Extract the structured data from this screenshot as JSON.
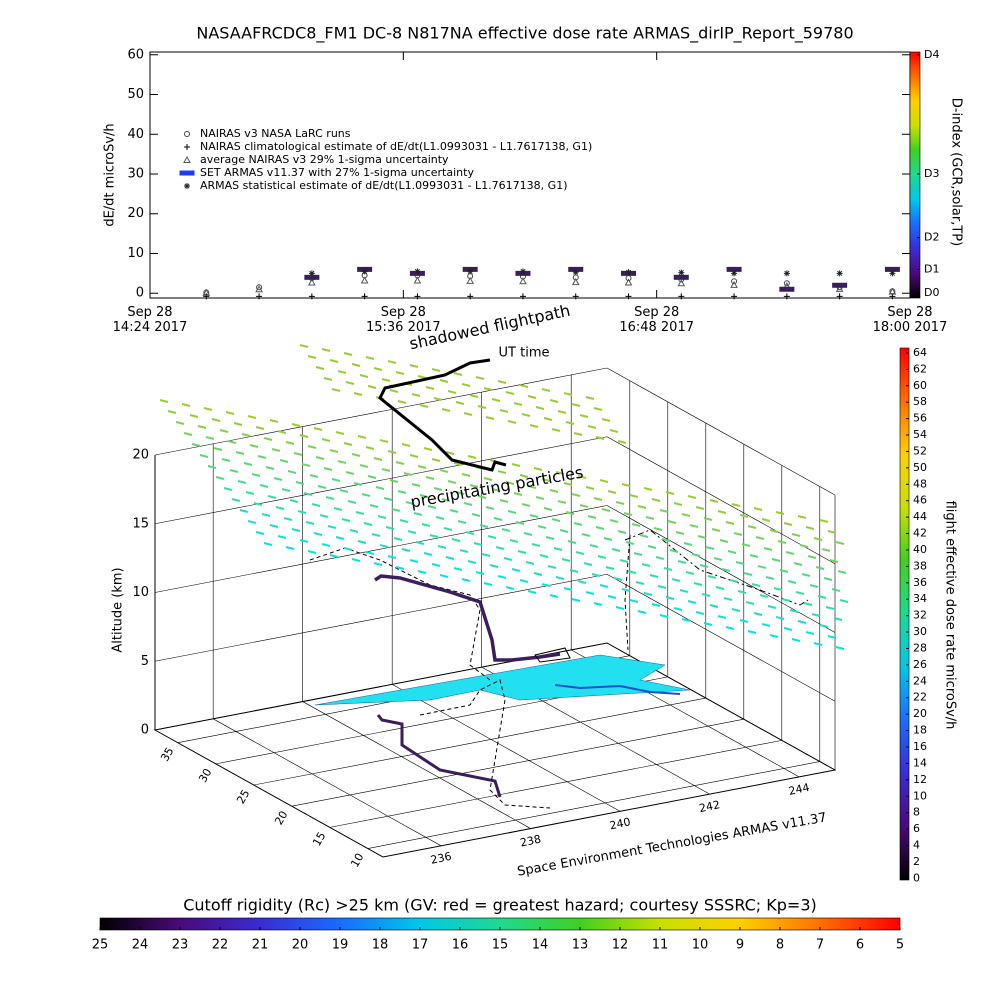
{
  "chart_data": [
    {
      "type": "line",
      "title": "NASAAFRCDC8_FM1 DC-8    N817NA effective dose rate ARMAS_dirIP_Report_59780",
      "ylabel": "dE/dt microSv/h",
      "x": [
        "2017-09-28 14:40",
        "2017-09-28 14:55",
        "2017-09-28 15:10",
        "2017-09-28 15:25",
        "2017-09-28 15:40",
        "2017-09-28 15:55",
        "2017-09-28 16:10",
        "2017-09-28 16:25",
        "2017-09-28 16:40",
        "2017-09-28 16:55",
        "2017-09-28 17:10",
        "2017-09-28 17:25",
        "2017-09-28 17:40",
        "2017-09-28 17:55"
      ],
      "xlim": [
        "2017-09-28 14:24",
        "2017-09-28 18:00"
      ],
      "xticks": [
        {
          "value": "2017-09-28 14:24",
          "label": "Sep 28\n14:24 2017"
        },
        {
          "value": "2017-09-28 15:36",
          "label": "Sep 28\n15:36 2017"
        },
        {
          "value": "2017-09-28 16:48",
          "label": "Sep 28\n16:48 2017"
        },
        {
          "value": "2017-09-28 18:00",
          "label": "Sep 28\n18:00 2017"
        }
      ],
      "ylim": [
        -1.2,
        60.7
      ],
      "yticks": [
        0,
        10,
        20,
        30,
        40,
        50,
        60
      ],
      "grid": false,
      "series": [
        {
          "name": "NAIRAS v3 NASA LaRC runs",
          "marker": "circle",
          "color": "#444444",
          "values": [
            0.2,
            1.5,
            3.8,
            4.5,
            4.5,
            4.3,
            4.2,
            4.0,
            3.8,
            3.5,
            3.0,
            2.5,
            1.5,
            0.5
          ]
        },
        {
          "name": "NAIRAS climatological estimate of dE/dt(L1.0993031 - L1.7617138, G1)",
          "marker": "plus",
          "color": "#000000",
          "values": [
            -0.8,
            -0.8,
            -0.8,
            -0.8,
            -0.8,
            -0.8,
            -0.8,
            -0.8,
            -0.8,
            -0.8,
            -0.8,
            -0.8,
            -0.8,
            -0.8
          ]
        },
        {
          "name": "average NAIRAS v3 29% 1-sigma uncertainty",
          "marker": "triangle",
          "color": "#555555",
          "values": [
            0.1,
            1.0,
            2.7,
            3.2,
            3.2,
            3.1,
            3.0,
            2.8,
            2.7,
            2.5,
            2.1,
            1.8,
            1.1,
            0.4
          ]
        },
        {
          "name": "SET ARMAS v11.37 with 27% 1-sigma uncertainty",
          "marker": "square",
          "color": "#3a1f5c",
          "values": [
            null,
            null,
            4.0,
            6.0,
            5.0,
            6.0,
            5.0,
            6.0,
            5.0,
            4.0,
            6.0,
            1.0,
            2.0,
            6.0
          ]
        },
        {
          "name": "ARMAS statistical estimate of dE/dt(L1.0993031 - L1.7617138, G1)",
          "marker": "asterisk",
          "color": "#222222",
          "values": [
            null,
            null,
            5.0,
            5.5,
            5.5,
            5.5,
            5.5,
            5.3,
            5.3,
            5.2,
            5.0,
            5.0,
            5.0,
            5.0
          ]
        }
      ]
    },
    {
      "type": "3d",
      "annotations": [
        "shadowed flightpath",
        "UT time",
        "precipitating particles",
        "Space Environment Technologies ARMAS v11.37"
      ],
      "zlabel": "Altitude (km)",
      "xlim": [
        234.7,
        244.8
      ],
      "xticks": [
        236,
        238,
        240,
        242,
        244
      ],
      "ylim": [
        8,
        38
      ],
      "yticks": [
        10,
        15,
        20,
        25,
        30,
        35
      ],
      "zlim": [
        0,
        20
      ],
      "zticks": [
        0,
        5,
        10,
        15,
        20
      ]
    },
    {
      "type": "colorbar",
      "orientation": "vertical",
      "label": "flight effective dose rate microSv/h",
      "ylim": [
        -0.2,
        64.6
      ],
      "yticks": [
        0,
        2,
        4,
        6,
        8,
        10,
        12,
        14,
        16,
        18,
        20,
        22,
        24,
        26,
        28,
        30,
        32,
        34,
        36,
        38,
        40,
        42,
        44,
        46,
        48,
        50,
        52,
        54,
        56,
        58,
        60,
        62,
        64
      ],
      "colors": [
        "#000000",
        "#4b0a7a",
        "#3a2cd0",
        "#1a6cff",
        "#00c8e8",
        "#20d890",
        "#40d020",
        "#c8e000",
        "#ffd000",
        "#ff7000",
        "#ff0000"
      ]
    },
    {
      "type": "colorbar",
      "orientation": "horizontal",
      "label": "Cutoff rigidity (Rc) >25 km (GV: red = greatest hazard; courtesy SSSRC; Kp=3)",
      "xlim": [
        25,
        5
      ],
      "xticks": [
        25,
        24,
        23,
        22,
        21,
        20,
        19,
        18,
        17,
        16,
        15,
        14,
        13,
        12,
        11,
        10,
        9,
        8,
        7,
        6,
        5
      ],
      "colors": [
        "#000000",
        "#4b0a7a",
        "#3a2cd0",
        "#1a6cff",
        "#00c8e8",
        "#20d890",
        "#40d020",
        "#c8e000",
        "#ffd000",
        "#ff7000",
        "#ff0000"
      ]
    },
    {
      "type": "colorbar",
      "orientation": "vertical",
      "label": "D-index (GCR,solar,TP)",
      "ylim": [
        -1.2,
        60.7
      ],
      "yticks": [
        {
          "value": 0,
          "label": "D0"
        },
        {
          "value": 6,
          "label": "D1"
        },
        {
          "value": 14,
          "label": "D2"
        },
        {
          "value": 30,
          "label": "D3"
        },
        {
          "value": 60,
          "label": "D4"
        }
      ],
      "colors": [
        "#000000",
        "#4b0a7a",
        "#3a2cd0",
        "#1a6cff",
        "#00c8e8",
        "#20d890",
        "#40d020",
        "#c8e000",
        "#ffd000",
        "#ff7000",
        "#ff0000"
      ]
    }
  ]
}
